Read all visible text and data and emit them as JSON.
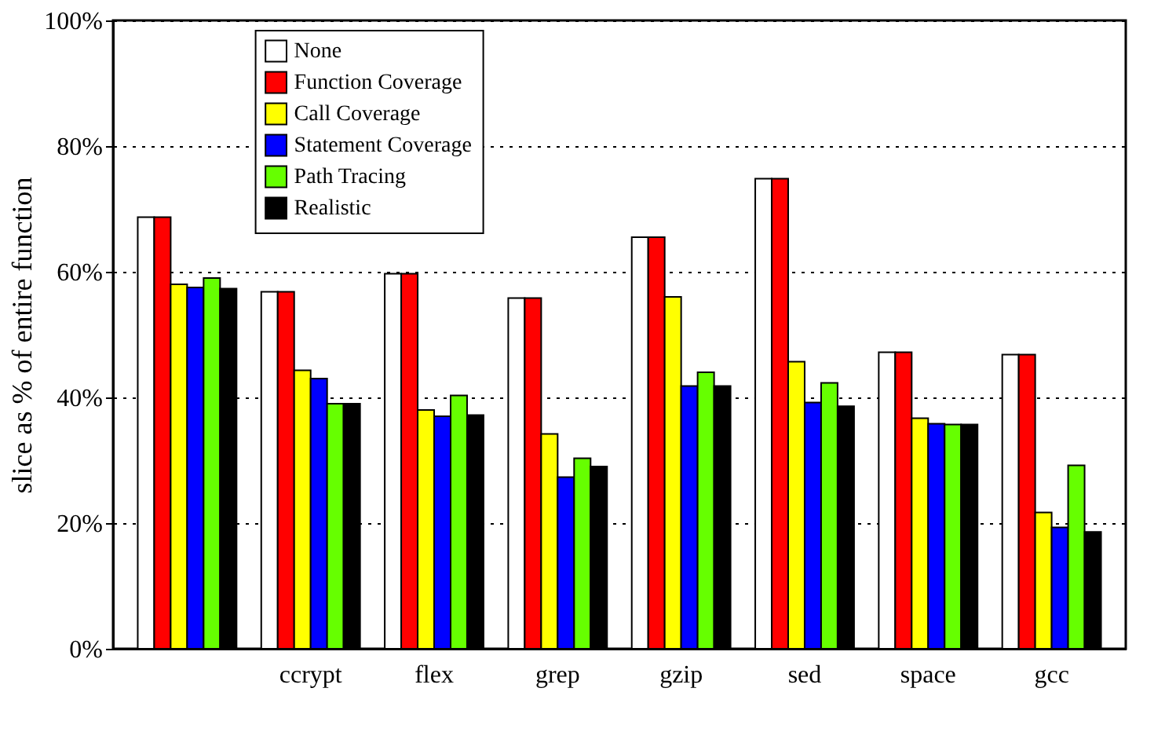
{
  "chart_data": {
    "type": "bar",
    "ylabel": "slice as % of entire function",
    "categories": [
      null,
      "ccrypt",
      "flex",
      "grep",
      "gzip",
      "sed",
      "space",
      "gcc"
    ],
    "series": [
      {
        "name": "None",
        "color": "#ffffff",
        "values": [
          68.7,
          56.8,
          59.7,
          55.8,
          65.5,
          74.8,
          47.2,
          46.8
        ]
      },
      {
        "name": "Function Coverage",
        "color": "#ff0000",
        "values": [
          68.7,
          56.8,
          59.7,
          55.8,
          65.5,
          74.8,
          47.2,
          46.8
        ]
      },
      {
        "name": "Call Coverage",
        "color": "#ffff00",
        "values": [
          58,
          44.3,
          38,
          34.2,
          56,
          45.7,
          36.7,
          21.7
        ]
      },
      {
        "name": "Statement Coverage",
        "color": "#0000ff",
        "values": [
          57.5,
          43,
          37,
          27.3,
          41.8,
          39.2,
          35.8,
          19.3
        ]
      },
      {
        "name": "Path Tracing",
        "color": "#66ff00",
        "values": [
          59,
          39,
          40.3,
          30.3,
          44,
          42.3,
          35.7,
          29.2
        ]
      },
      {
        "name": "Realistic",
        "color": "#000000",
        "values": [
          57.3,
          39,
          37.2,
          29,
          41.8,
          38.6,
          35.7,
          18.6
        ]
      }
    ],
    "ylim": [
      0,
      100
    ],
    "yticks": [
      {
        "value": 0,
        "label": "0%"
      },
      {
        "value": 20,
        "label": "20%"
      },
      {
        "value": 40,
        "label": "40%"
      },
      {
        "value": 60,
        "label": "60%"
      },
      {
        "value": 80,
        "label": "80%"
      },
      {
        "value": 100,
        "label": "100%"
      }
    ],
    "grid": "y",
    "legend": "top left"
  }
}
